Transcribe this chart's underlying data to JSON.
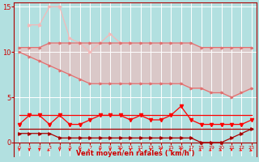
{
  "xlabel": "Vent moyen/en rafales ( km/h )",
  "bg_color": "#b2e0e0",
  "grid_color": "#ffffff",
  "text_color": "#cc0000",
  "ylim": [
    -1.5,
    15.5
  ],
  "xlim": [
    -0.5,
    23.5
  ],
  "yticks": [
    0,
    5,
    10,
    15
  ],
  "xticks": [
    0,
    1,
    2,
    3,
    4,
    5,
    6,
    7,
    8,
    9,
    10,
    11,
    12,
    13,
    14,
    15,
    16,
    17,
    18,
    19,
    20,
    21,
    22,
    23
  ],
  "hours": [
    0,
    1,
    2,
    3,
    4,
    5,
    6,
    7,
    8,
    9,
    10,
    11,
    12,
    13,
    14,
    15,
    16,
    17,
    18,
    19,
    20,
    21,
    22,
    23
  ],
  "line_rafales_spiky": [
    null,
    13,
    13,
    15,
    15,
    11.5,
    11,
    10,
    null,
    12,
    11,
    11,
    null,
    null,
    null,
    null,
    null,
    null,
    null,
    null,
    null,
    null,
    null,
    null
  ],
  "line_upper_smooth": [
    10.5,
    10.5,
    10.5,
    11,
    11,
    11,
    11,
    11,
    11,
    11,
    11,
    11,
    11,
    11,
    11,
    11,
    11,
    11,
    10.5,
    10.5,
    10.5,
    10.5,
    10.5,
    10.5
  ],
  "line_lower_smooth": [
    10,
    9.5,
    9,
    8.5,
    8,
    7.5,
    7,
    6.5,
    6.5,
    6.5,
    6.5,
    6.5,
    6.5,
    6.5,
    6.5,
    6.5,
    6.5,
    6,
    6,
    5.5,
    5.5,
    5,
    5.5,
    6
  ],
  "line_wind_upper": [
    3,
    3,
    3,
    3,
    3,
    3,
    3,
    3,
    3,
    3,
    3,
    3,
    3,
    3,
    3,
    3,
    3,
    3,
    3,
    3,
    3,
    3,
    3,
    3
  ],
  "line_wind_moyen_spiky": [
    2,
    3,
    3,
    2,
    3,
    2,
    2,
    2.5,
    3,
    3,
    3,
    2.5,
    3,
    2.5,
    2.5,
    3,
    4,
    2.5,
    2,
    2,
    2,
    2,
    2,
    2.5
  ],
  "line_dark1": [
    1.5,
    1.5,
    1.5,
    1.5,
    1.5,
    1.5,
    1.5,
    1.5,
    1.5,
    1.5,
    1.5,
    1.5,
    1.5,
    1.5,
    1.5,
    1.5,
    1.5,
    1.5,
    1.5,
    1.5,
    1.5,
    1.5,
    1.5,
    1.5
  ],
  "line_dark2_spiky": [
    1,
    1,
    1,
    1,
    0.5,
    0.5,
    0.5,
    0.5,
    0.5,
    0.5,
    0.5,
    0.5,
    0.5,
    0.5,
    0.5,
    0.5,
    0.5,
    0.5,
    0,
    0,
    0,
    0.5,
    1,
    1.5
  ],
  "color_light_pink": "#f5b8b8",
  "color_pink": "#e07070",
  "color_red": "#ff0000",
  "color_dark_red": "#aa0000",
  "color_darkest_red": "#770000",
  "arrow_angles": [
    0,
    0,
    0,
    30,
    0,
    0,
    0,
    30,
    0,
    0,
    0,
    0,
    30,
    0,
    0,
    30,
    0,
    30,
    30,
    30,
    30,
    0,
    30,
    45
  ]
}
